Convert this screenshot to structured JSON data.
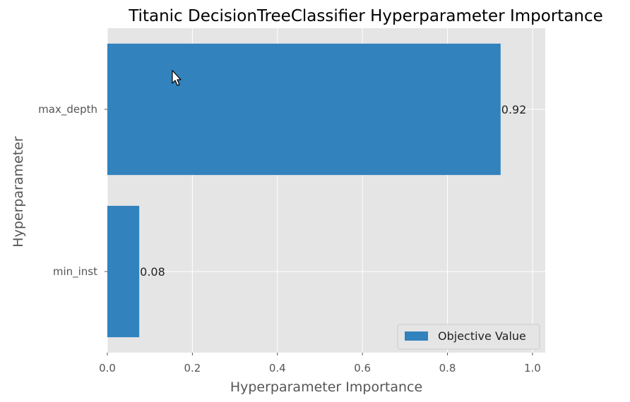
{
  "chart_data": {
    "type": "bar",
    "orientation": "horizontal",
    "title": "Titanic DecisionTreeClassifier Hyperparameter Importance",
    "xlabel": "Hyperparameter Importance",
    "ylabel": "Hyperparameter",
    "categories": [
      "max_depth",
      "min_inst"
    ],
    "series": [
      {
        "name": "Objective Value",
        "values": [
          0.925,
          0.075
        ]
      }
    ],
    "data_labels": [
      "0.92",
      "0.08"
    ],
    "xlim": [
      0.0,
      1.03
    ],
    "xticks": [
      0.0,
      0.2,
      0.4,
      0.6,
      0.8,
      1.0
    ],
    "xtick_labels": [
      "0.0",
      "0.2",
      "0.4",
      "0.6",
      "0.8",
      "1.0"
    ],
    "grid": true,
    "legend_position": "lower-right",
    "colors": {
      "bar": "#3182bd",
      "plot_background": "#e5e5e5",
      "grid": "#ffffff"
    }
  }
}
